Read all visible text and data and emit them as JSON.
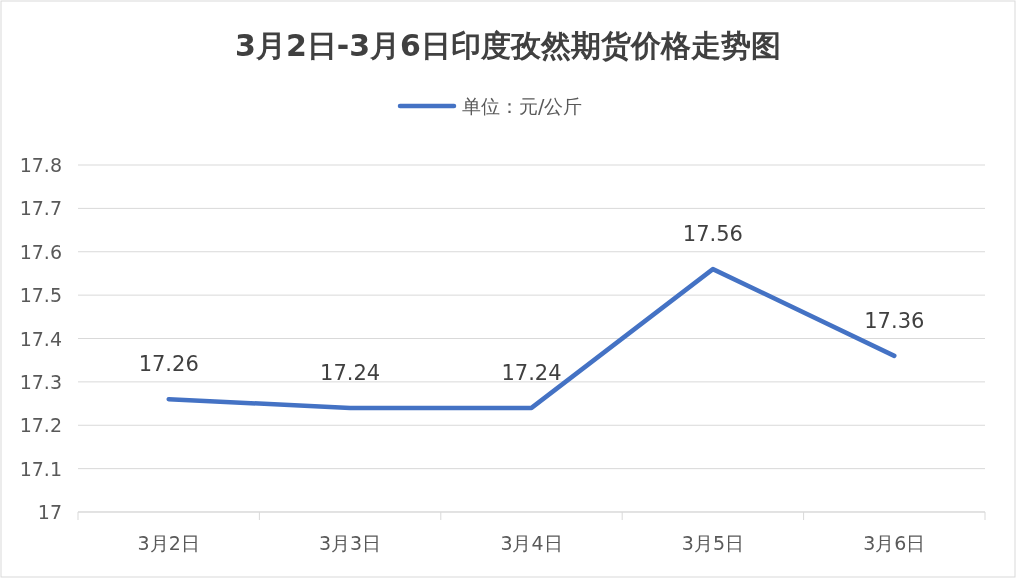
{
  "chart_data": {
    "type": "line",
    "title": "3月2日-3月6日印度孜然期货价格走势图",
    "categories": [
      "3月2日",
      "3月3日",
      "3月4日",
      "3月5日",
      "3月6日"
    ],
    "series": [
      {
        "name": "单位：元/公斤",
        "color": "#4472c4",
        "values": [
          17.26,
          17.24,
          17.24,
          17.56,
          17.36
        ]
      }
    ],
    "ylim": [
      17,
      17.8
    ],
    "yticks": [
      17,
      17.1,
      17.2,
      17.3,
      17.4,
      17.5,
      17.6,
      17.7,
      17.8
    ],
    "grid": "y",
    "legend": "top",
    "data_labels": true,
    "marker": "none",
    "line_style": "solid"
  }
}
